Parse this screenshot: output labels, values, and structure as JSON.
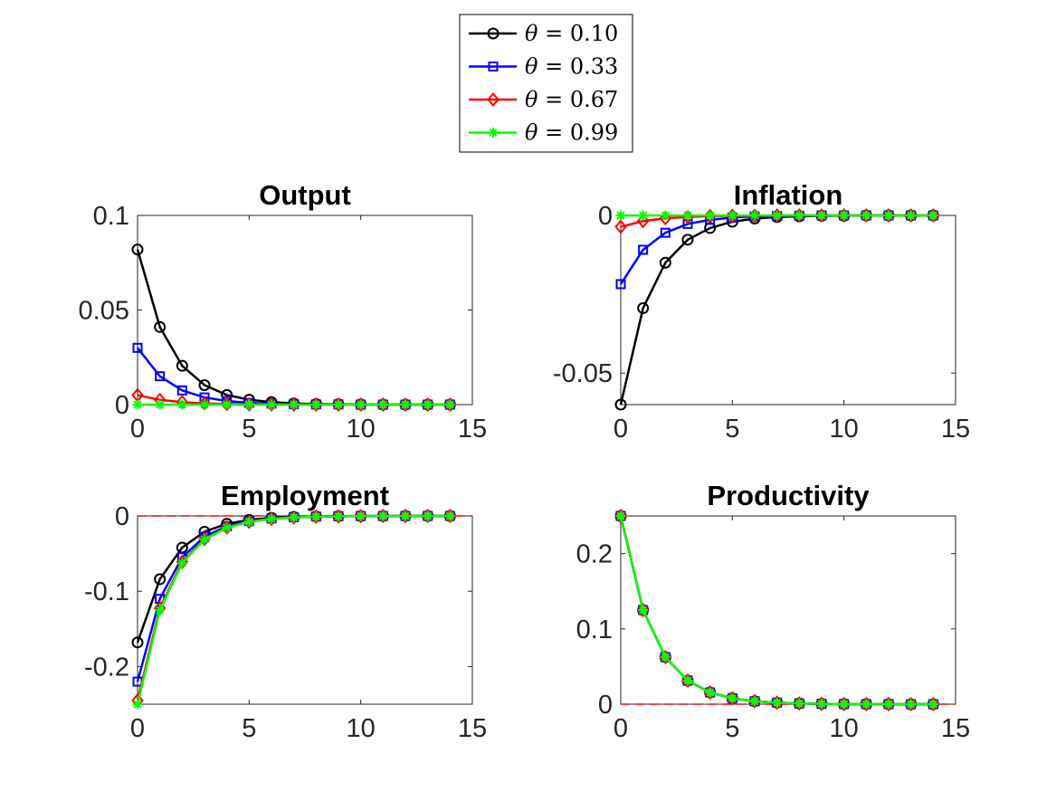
{
  "legend": {
    "position": "top-center",
    "entries": [
      {
        "label": "θ = 0.10",
        "symbol": "θ",
        "eq": "= 0.10",
        "color": "#000000",
        "marker": "circle"
      },
      {
        "label": "θ = 0.33",
        "symbol": "θ",
        "eq": "= 0.33",
        "color": "#0000ff",
        "marker": "square"
      },
      {
        "label": "θ = 0.67",
        "symbol": "θ",
        "eq": "= 0.67",
        "color": "#ff0000",
        "marker": "diamond"
      },
      {
        "label": "θ = 0.99",
        "symbol": "θ",
        "eq": "= 0.99",
        "color": "#00ff00",
        "marker": "asterisk"
      }
    ]
  },
  "chart_data": [
    {
      "type": "line",
      "title": "Output",
      "x": [
        0,
        1,
        2,
        3,
        4,
        5,
        6,
        7,
        8,
        9,
        10,
        11,
        12,
        13,
        14
      ],
      "xlim": [
        0,
        15
      ],
      "ylim": [
        0,
        0.1
      ],
      "xticks": [
        0,
        5,
        10,
        15
      ],
      "xtick_labels": [
        "0",
        "5",
        "10",
        "15"
      ],
      "yticks": [
        0,
        0.05,
        0.1
      ],
      "ytick_labels": [
        "0",
        "0.05",
        "0.1"
      ],
      "zero_line": false,
      "series": [
        {
          "name": "θ = 0.10",
          "values": [
            0.082,
            0.041,
            0.0205,
            0.0103,
            0.0051,
            0.0026,
            0.0013,
            0.0006,
            0.0003,
            0.0002,
            0.0001,
            0,
            0,
            0,
            0
          ]
        },
        {
          "name": "θ = 0.33",
          "values": [
            0.03,
            0.015,
            0.0075,
            0.0038,
            0.0019,
            0.0009,
            0.0005,
            0.0002,
            0.0001,
            0.0001,
            0,
            0,
            0,
            0,
            0
          ]
        },
        {
          "name": "θ = 0.67",
          "values": [
            0.005,
            0.0025,
            0.0013,
            0.0006,
            0.0003,
            0.0002,
            0.0001,
            0,
            0,
            0,
            0,
            0,
            0,
            0,
            0
          ]
        },
        {
          "name": "θ = 0.99",
          "values": [
            0,
            0,
            0,
            0,
            0,
            0,
            0,
            0,
            0,
            0,
            0,
            0,
            0,
            0,
            0
          ]
        }
      ]
    },
    {
      "type": "line",
      "title": "Inflation",
      "x": [
        0,
        1,
        2,
        3,
        4,
        5,
        6,
        7,
        8,
        9,
        10,
        11,
        12,
        13,
        14
      ],
      "xlim": [
        0,
        15
      ],
      "ylim": [
        -0.06,
        0
      ],
      "xticks": [
        0,
        5,
        10,
        15
      ],
      "xtick_labels": [
        "0",
        "5",
        "10",
        "15"
      ],
      "yticks": [
        -0.05,
        0
      ],
      "ytick_labels": [
        "-0.05",
        "0"
      ],
      "zero_line": false,
      "series": [
        {
          "name": "θ = 0.10",
          "values": [
            -0.06,
            -0.0294,
            -0.015,
            -0.0077,
            -0.004,
            -0.002,
            -0.001,
            -0.0005,
            -0.0003,
            -0.0001,
            -0.0001,
            0,
            0,
            0,
            0
          ]
        },
        {
          "name": "θ = 0.33",
          "values": [
            -0.0218,
            -0.0109,
            -0.0055,
            -0.0027,
            -0.0014,
            -0.0007,
            -0.0003,
            -0.0002,
            -0.0001,
            0,
            0,
            0,
            0,
            0,
            0
          ]
        },
        {
          "name": "θ = 0.67",
          "values": [
            -0.0036,
            -0.0018,
            -0.0009,
            -0.0005,
            -0.0002,
            -0.0001,
            -0.0001,
            0,
            0,
            0,
            0,
            0,
            0,
            0,
            0
          ]
        },
        {
          "name": "θ = 0.99",
          "values": [
            0,
            0,
            0,
            0,
            0,
            0,
            0,
            0,
            0,
            0,
            0,
            0,
            0,
            0,
            0
          ]
        }
      ]
    },
    {
      "type": "line",
      "title": "Employment",
      "x": [
        0,
        1,
        2,
        3,
        4,
        5,
        6,
        7,
        8,
        9,
        10,
        11,
        12,
        13,
        14
      ],
      "xlim": [
        0,
        15
      ],
      "ylim": [
        -0.25,
        0
      ],
      "xticks": [
        0,
        5,
        10,
        15
      ],
      "xtick_labels": [
        "0",
        "5",
        "10",
        "15"
      ],
      "yticks": [
        -0.2,
        -0.1,
        0
      ],
      "ytick_labels": [
        "-0.2",
        "-0.1",
        "0"
      ],
      "zero_line": true,
      "series": [
        {
          "name": "θ = 0.10",
          "values": [
            -0.168,
            -0.084,
            -0.042,
            -0.021,
            -0.0105,
            -0.0052,
            -0.0026,
            -0.0013,
            -0.0007,
            -0.0003,
            -0.0002,
            -0.0001,
            0,
            0,
            0
          ]
        },
        {
          "name": "θ = 0.33",
          "values": [
            -0.22,
            -0.11,
            -0.055,
            -0.0275,
            -0.0138,
            -0.0069,
            -0.0034,
            -0.0017,
            -0.0009,
            -0.0004,
            -0.0002,
            -0.0001,
            -0.0001,
            0,
            0
          ]
        },
        {
          "name": "θ = 0.67",
          "values": [
            -0.245,
            -0.1225,
            -0.0612,
            -0.0306,
            -0.0153,
            -0.0077,
            -0.0038,
            -0.0019,
            -0.001,
            -0.0005,
            -0.0002,
            -0.0001,
            -0.0001,
            0,
            0
          ]
        },
        {
          "name": "θ = 0.99",
          "values": [
            -0.25,
            -0.125,
            -0.0625,
            -0.0313,
            -0.0156,
            -0.0078,
            -0.0039,
            -0.002,
            -0.001,
            -0.0005,
            -0.0002,
            -0.0001,
            -0.0001,
            0,
            0
          ]
        }
      ]
    },
    {
      "type": "line",
      "title": "Productivity",
      "x": [
        0,
        1,
        2,
        3,
        4,
        5,
        6,
        7,
        8,
        9,
        10,
        11,
        12,
        13,
        14
      ],
      "xlim": [
        0,
        15
      ],
      "ylim": [
        0,
        0.25
      ],
      "xticks": [
        0,
        5,
        10,
        15
      ],
      "xtick_labels": [
        "0",
        "5",
        "10",
        "15"
      ],
      "yticks": [
        0,
        0.1,
        0.2
      ],
      "ytick_labels": [
        "0",
        "0.1",
        "0.2"
      ],
      "zero_line": true,
      "series": [
        {
          "name": "θ = 0.10",
          "values": [
            0.25,
            0.125,
            0.0625,
            0.0313,
            0.0156,
            0.0078,
            0.0039,
            0.002,
            0.001,
            0.0005,
            0.0002,
            0.0001,
            0.0001,
            0,
            0
          ]
        },
        {
          "name": "θ = 0.33",
          "values": [
            0.25,
            0.125,
            0.0625,
            0.0313,
            0.0156,
            0.0078,
            0.0039,
            0.002,
            0.001,
            0.0005,
            0.0002,
            0.0001,
            0.0001,
            0,
            0
          ]
        },
        {
          "name": "θ = 0.67",
          "values": [
            0.25,
            0.125,
            0.0625,
            0.0313,
            0.0156,
            0.0078,
            0.0039,
            0.002,
            0.001,
            0.0005,
            0.0002,
            0.0001,
            0.0001,
            0,
            0
          ]
        },
        {
          "name": "θ = 0.99",
          "values": [
            0.25,
            0.125,
            0.0625,
            0.0313,
            0.0156,
            0.0078,
            0.0039,
            0.002,
            0.001,
            0.0005,
            0.0002,
            0.0001,
            0.0001,
            0,
            0
          ]
        }
      ]
    }
  ]
}
